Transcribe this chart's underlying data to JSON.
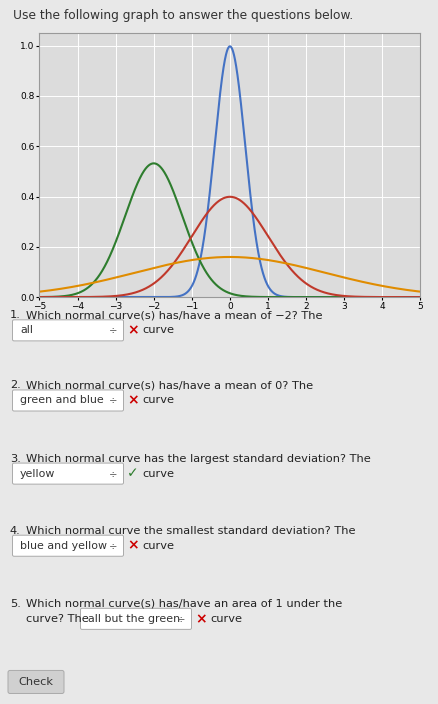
{
  "title": "Use the following graph to answer the questions below.",
  "curves": [
    {
      "mean": 0,
      "std": 0.4,
      "color": "#4472c4",
      "lw": 1.5,
      "label": "blue"
    },
    {
      "mean": -2,
      "std": 0.75,
      "color": "#2e7d2e",
      "lw": 1.5,
      "label": "green"
    },
    {
      "mean": 0,
      "std": 1.0,
      "color": "#c0392b",
      "lw": 1.5,
      "label": "red"
    },
    {
      "mean": 0,
      "std": 2.5,
      "color": "#e08c00",
      "lw": 1.5,
      "label": "yellow"
    }
  ],
  "xlim": [
    -5,
    5
  ],
  "ylim": [
    0.0,
    1.05
  ],
  "xticks": [
    -5,
    -4,
    -3,
    -2,
    -1,
    0,
    1,
    2,
    3,
    4,
    5
  ],
  "yticks": [
    0.0,
    0.2,
    0.4,
    0.6,
    0.8,
    1.0
  ],
  "bg_color": "#e8e8e8",
  "plot_bg": "#dcdcdc",
  "outer_border": "#bbbbbb",
  "questions": [
    {
      "num": "1.",
      "text": "Which normal curve(s) has/have a mean of −2? The",
      "answer": "all",
      "mark": "×",
      "mark_color": "#cc0000"
    },
    {
      "num": "2.",
      "text": "Which normal curve(s) has/have a mean of 0? The",
      "answer": "green and blue",
      "mark": "×",
      "mark_color": "#cc0000"
    },
    {
      "num": "3.",
      "text": "Which normal curve has the largest standard deviation? The",
      "answer": "yellow",
      "mark": "✓",
      "mark_color": "#2e7d2e"
    },
    {
      "num": "4.",
      "text": "Which normal curve the smallest standard deviation? The",
      "answer": "blue and yellow",
      "mark": "×",
      "mark_color": "#cc0000"
    },
    {
      "num": "5.",
      "text1": "Which normal curve(s) has/have an area of 1 under the",
      "text2": "curve? The",
      "answer": "all but the green",
      "mark": "×",
      "mark_color": "#cc0000"
    }
  ],
  "check_label": "Check"
}
